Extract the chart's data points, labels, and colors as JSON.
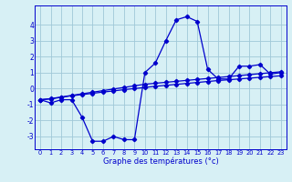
{
  "x": [
    0,
    1,
    2,
    3,
    4,
    5,
    6,
    7,
    8,
    9,
    10,
    11,
    12,
    13,
    14,
    15,
    16,
    17,
    18,
    19,
    20,
    21,
    22,
    23
  ],
  "y_main": [
    -0.7,
    -0.9,
    -0.7,
    -0.7,
    -1.8,
    -3.3,
    -3.3,
    -3.0,
    -3.2,
    -3.2,
    1.0,
    1.6,
    3.0,
    4.3,
    4.5,
    4.2,
    1.2,
    0.6,
    0.6,
    1.4,
    1.4,
    1.5,
    0.9,
    1.0
  ],
  "y_line2": [
    -0.7,
    -0.65,
    -0.55,
    -0.45,
    -0.38,
    -0.3,
    -0.22,
    -0.15,
    -0.07,
    0.0,
    0.07,
    0.14,
    0.2,
    0.26,
    0.32,
    0.38,
    0.44,
    0.5,
    0.55,
    0.6,
    0.65,
    0.7,
    0.75,
    0.8
  ],
  "y_line3": [
    -0.7,
    -0.63,
    -0.53,
    -0.43,
    -0.33,
    -0.23,
    -0.13,
    -0.03,
    0.07,
    0.17,
    0.27,
    0.33,
    0.39,
    0.45,
    0.51,
    0.57,
    0.63,
    0.69,
    0.75,
    0.81,
    0.87,
    0.93,
    0.99,
    1.05
  ],
  "line_color": "#0000cc",
  "bg_color": "#d7f0f5",
  "grid_color": "#a0c8d8",
  "xlabel": "Graphe des températures (°c)",
  "yticks": [
    -3,
    -2,
    -1,
    0,
    1,
    2,
    3,
    4
  ],
  "xlim": [
    -0.5,
    23.5
  ],
  "ylim": [
    -3.8,
    5.2
  ]
}
